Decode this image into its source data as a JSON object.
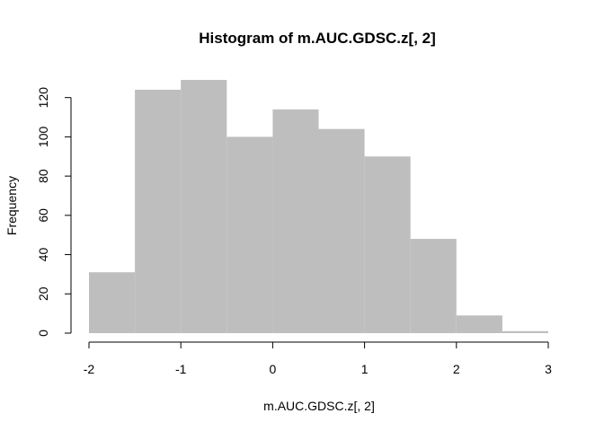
{
  "chart_data": {
    "type": "bar",
    "title": "Histogram of m.AUC.GDSC.z[, 2]",
    "xlabel": "m.AUC.GDSC.z[, 2]",
    "ylabel": "Frequency",
    "bin_edges": [
      -2,
      -1.5,
      -1,
      -0.5,
      0,
      0.5,
      1,
      1.5,
      2,
      2.5,
      3
    ],
    "values": [
      31,
      124,
      129,
      100,
      114,
      104,
      90,
      48,
      9,
      1
    ],
    "xlim": [
      -2,
      3
    ],
    "ylim": [
      0,
      129
    ],
    "x_ticks": [
      "-2",
      "-1",
      "0",
      "1",
      "2",
      "3"
    ],
    "y_ticks": [
      "0",
      "20",
      "40",
      "60",
      "80",
      "100",
      "120"
    ],
    "bar_color": "#bebebe",
    "grid": false
  }
}
